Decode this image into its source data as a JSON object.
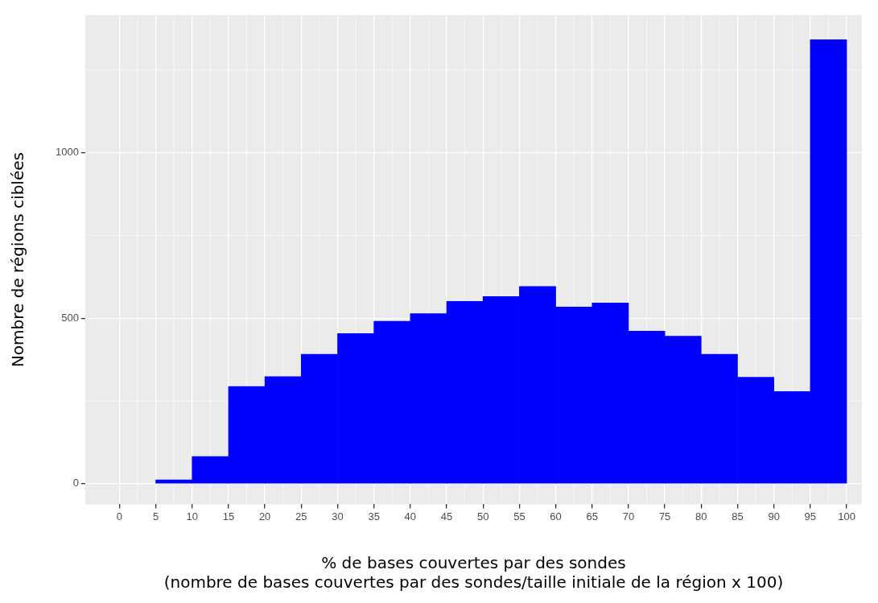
{
  "chart_data": {
    "type": "histogram",
    "xlabel": "% de bases couvertes par des sondes\n(nombre de bases couvertes par des sondes/taille initiale de la région x 100)",
    "ylabel": "Nombre de régions ciblées",
    "bins": [
      5,
      10,
      15,
      20,
      25,
      30,
      35,
      40,
      45,
      50,
      55,
      60,
      65,
      70,
      75,
      80,
      85,
      90,
      95,
      100
    ],
    "values": [
      12,
      82,
      294,
      324,
      391,
      454,
      491,
      514,
      551,
      566,
      596,
      534,
      546,
      461,
      446,
      391,
      322,
      279,
      1342
    ],
    "color": "#0000ff",
    "xlim": [
      -4.7,
      102.1
    ],
    "xticks": [
      0,
      5,
      10,
      15,
      20,
      25,
      30,
      35,
      40,
      45,
      50,
      55,
      60,
      65,
      70,
      75,
      80,
      85,
      90,
      95,
      100
    ],
    "ylim": [
      -62,
      1416
    ],
    "yticks": [
      0,
      500,
      1000
    ],
    "grid": true
  }
}
